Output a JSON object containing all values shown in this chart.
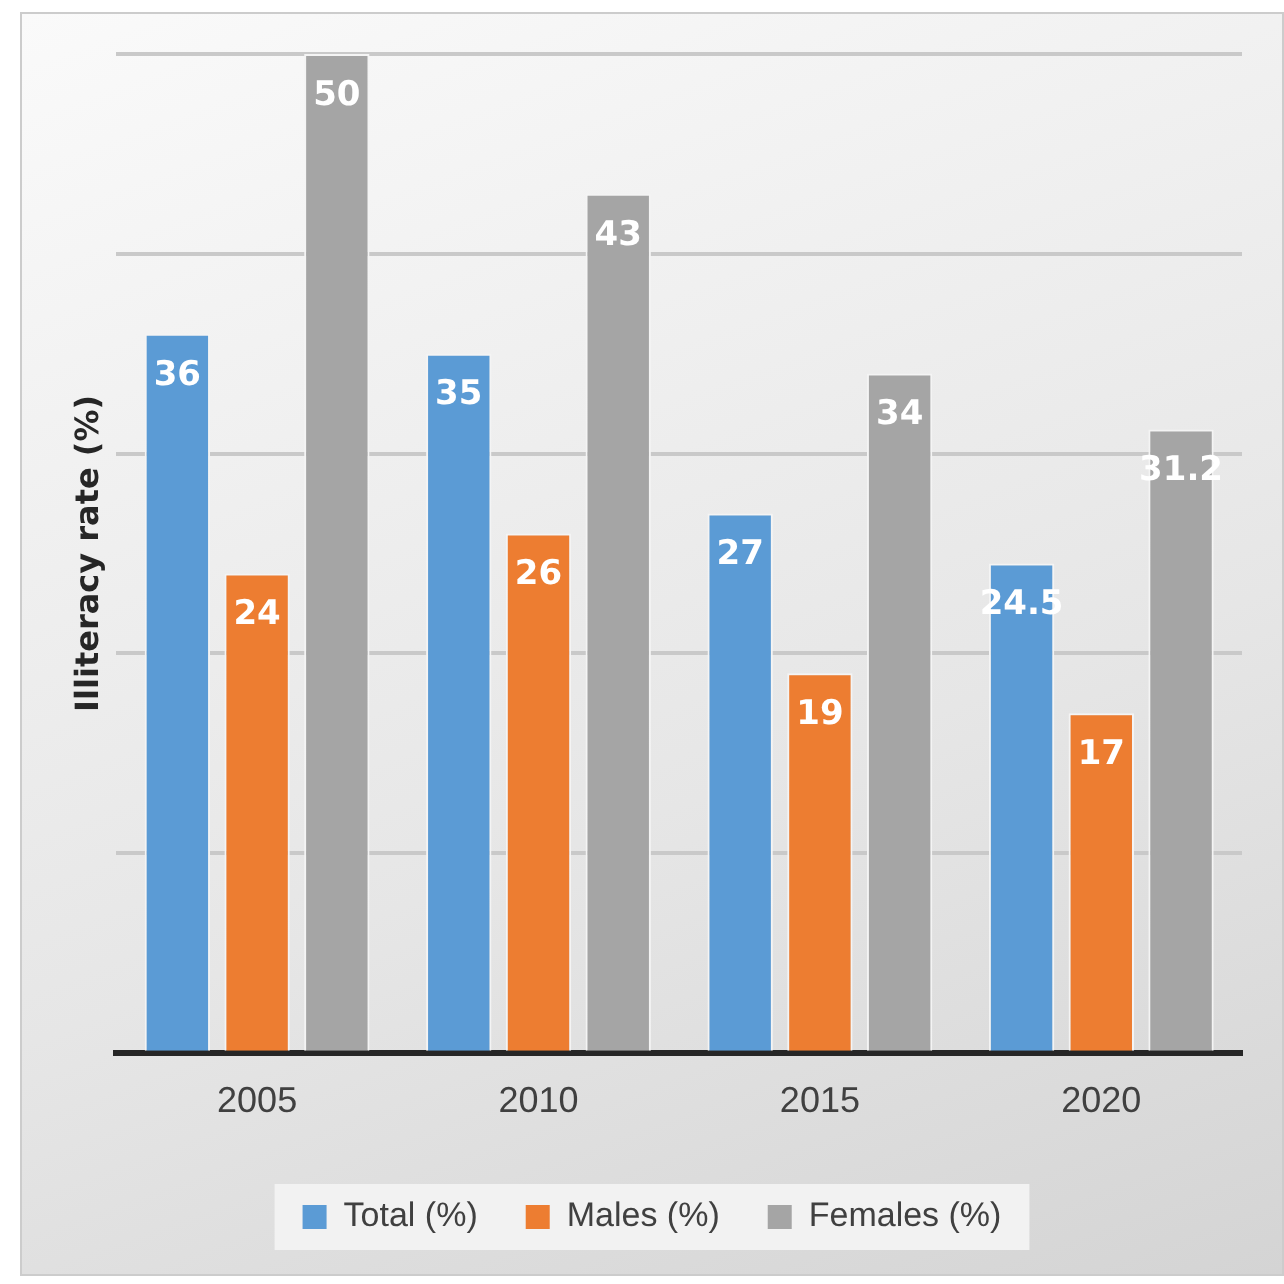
{
  "chart_data": {
    "type": "bar",
    "ylabel": "Illiteracy rate (%)",
    "categories": [
      "2005",
      "2010",
      "2015",
      "2020"
    ],
    "series": [
      {
        "name": "Total (%)",
        "color": "#5b9bd5",
        "values": [
          36,
          35,
          27,
          24.5
        ]
      },
      {
        "name": "Males (%)",
        "color": "#ed7d31",
        "values": [
          24,
          26,
          19,
          17
        ]
      },
      {
        "name": "Females (%)",
        "color": "#a5a5a5",
        "values": [
          50,
          43,
          34,
          31.2
        ]
      }
    ],
    "grid": "y",
    "tick_labels": "x",
    "data_labels": true,
    "legend": "bottom"
  }
}
